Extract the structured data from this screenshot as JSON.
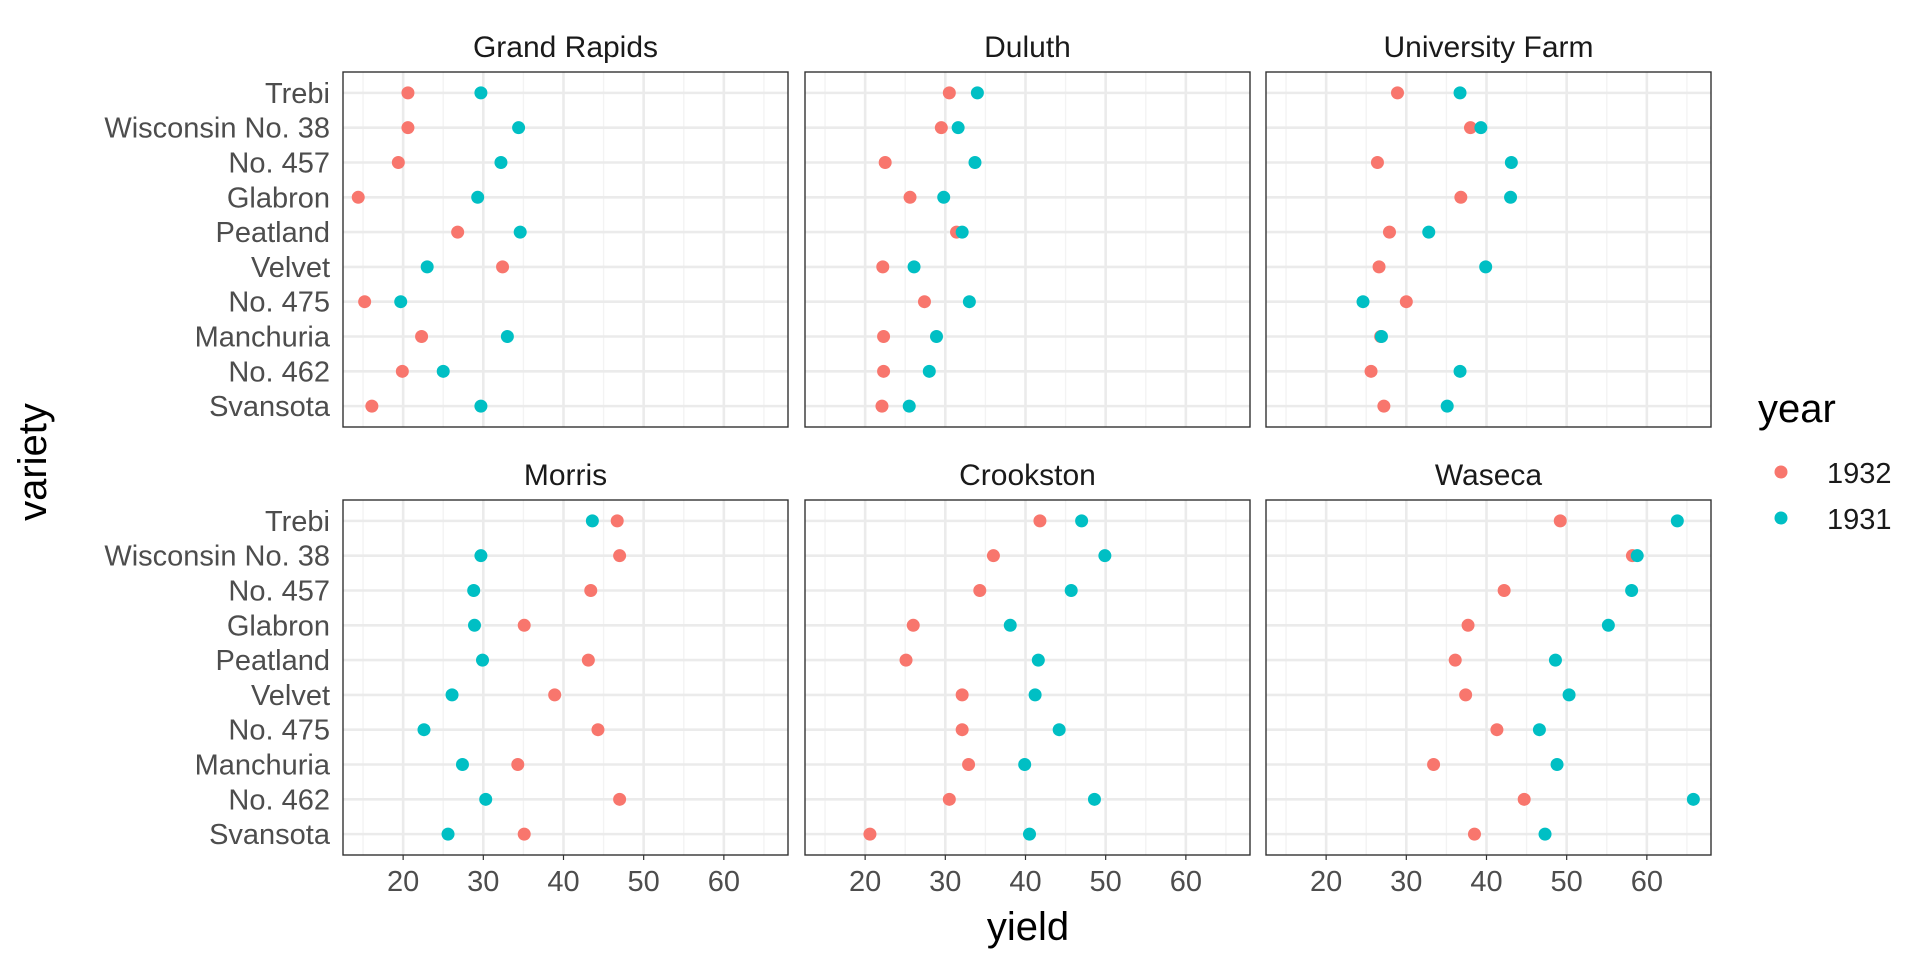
{
  "chart_data": {
    "type": "scatter",
    "xlabel": "yield",
    "ylabel": "variety",
    "xlim": [
      12.5,
      68
    ],
    "xticks": [
      20,
      30,
      40,
      50,
      60
    ],
    "grid": true,
    "legend": {
      "title": "year",
      "position": "right",
      "entries": [
        {
          "label": "1932",
          "color": "#F8766D"
        },
        {
          "label": "1931",
          "color": "#00BFC4"
        }
      ]
    },
    "varieties": [
      "Trebi",
      "Wisconsin No. 38",
      "No. 457",
      "Glabron",
      "Peatland",
      "Velvet",
      "No. 475",
      "Manchuria",
      "No. 462",
      "Svansota"
    ],
    "panels": [
      {
        "site": "Grand Rapids",
        "series": [
          {
            "name": "1932",
            "values": [
              20.6,
              20.6,
              19.4,
              14.4,
              26.8,
              32.4,
              15.2,
              22.3,
              19.9,
              16.1
            ]
          },
          {
            "name": "1931",
            "values": [
              29.7,
              34.4,
              32.2,
              29.3,
              34.6,
              23.0,
              19.7,
              33.0,
              25.0,
              29.7
            ]
          }
        ]
      },
      {
        "site": "Duluth",
        "series": [
          {
            "name": "1932",
            "values": [
              30.5,
              29.5,
              22.5,
              25.6,
              31.4,
              22.2,
              27.4,
              22.3,
              22.3,
              22.1
            ]
          },
          {
            "name": "1931",
            "values": [
              34.0,
              31.6,
              33.7,
              29.8,
              32.1,
              26.1,
              33.0,
              28.9,
              28.0,
              25.5
            ]
          }
        ]
      },
      {
        "site": "University Farm",
        "series": [
          {
            "name": "1932",
            "values": [
              28.9,
              38.0,
              26.4,
              36.8,
              27.9,
              26.6,
              30.0,
              26.8,
              25.6,
              27.2
            ]
          },
          {
            "name": "1931",
            "values": [
              36.7,
              39.3,
              43.1,
              43.0,
              32.8,
              39.9,
              24.6,
              26.9,
              36.7,
              35.1
            ]
          }
        ]
      },
      {
        "site": "Morris",
        "series": [
          {
            "name": "1932",
            "values": [
              46.7,
              47.0,
              43.4,
              35.1,
              43.1,
              38.9,
              44.3,
              34.3,
              47.0,
              35.1
            ]
          },
          {
            "name": "1931",
            "values": [
              43.6,
              29.7,
              28.8,
              28.9,
              29.9,
              26.1,
              22.6,
              27.4,
              30.3,
              25.6
            ]
          }
        ]
      },
      {
        "site": "Crookston",
        "series": [
          {
            "name": "1932",
            "values": [
              41.8,
              36.0,
              34.3,
              26.0,
              25.1,
              32.1,
              32.1,
              32.9,
              30.5,
              20.6
            ]
          },
          {
            "name": "1931",
            "values": [
              47.0,
              49.9,
              45.7,
              38.1,
              41.6,
              41.2,
              44.2,
              39.9,
              48.6,
              40.5
            ]
          }
        ]
      },
      {
        "site": "Waseca",
        "series": [
          {
            "name": "1932",
            "values": [
              49.2,
              58.2,
              42.2,
              37.7,
              36.1,
              37.4,
              41.3,
              33.4,
              44.7,
              38.5
            ]
          },
          {
            "name": "1931",
            "values": [
              63.8,
              58.8,
              58.1,
              55.2,
              48.6,
              50.3,
              46.6,
              48.8,
              65.8,
              47.3
            ]
          }
        ]
      }
    ]
  }
}
